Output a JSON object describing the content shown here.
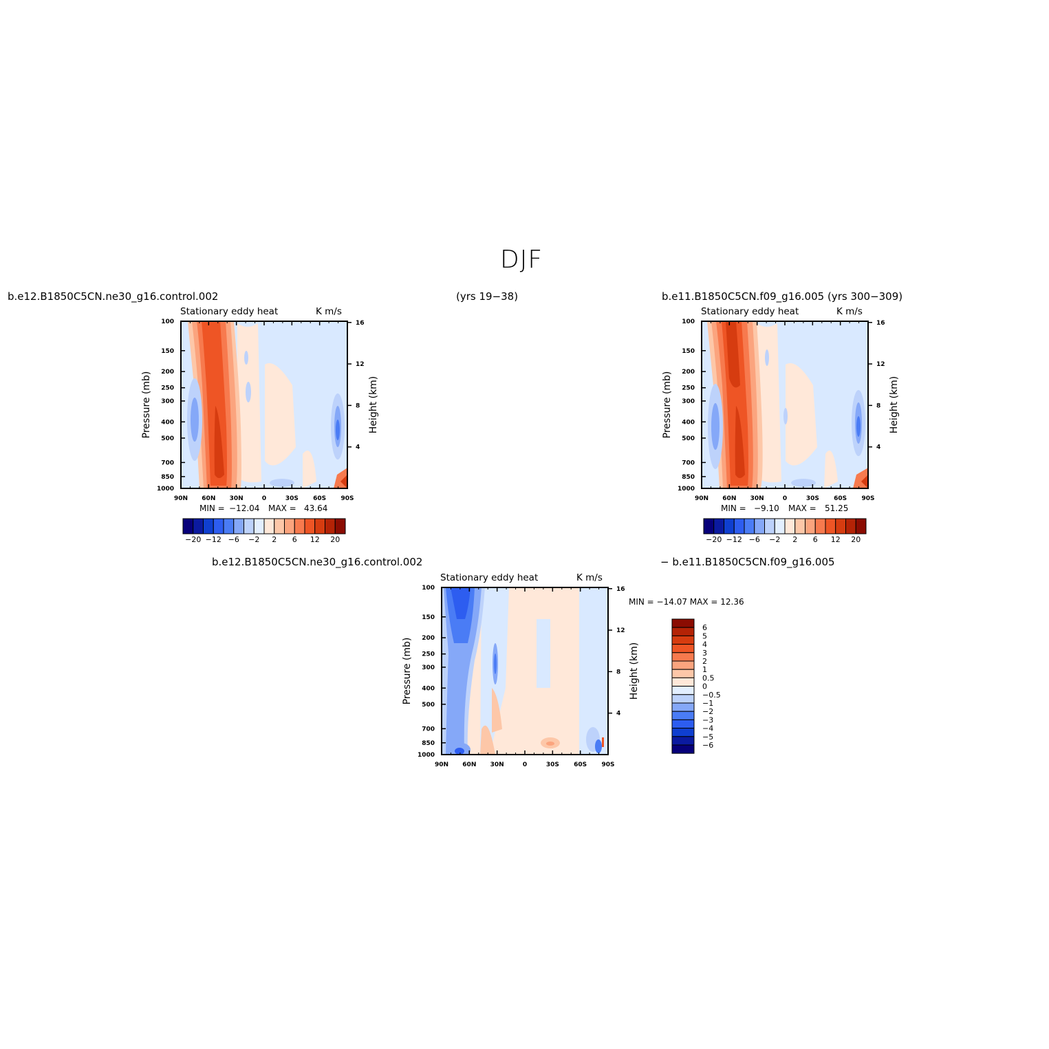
{
  "page": {
    "title": "DJF"
  },
  "top_left": {
    "case": "b.e12.B1850C5CN.ne30_g16.control.002",
    "field": "Stationary  eddy  heat",
    "units": "K  m/s",
    "years": "(yrs  19−38)",
    "min_label": "MIN  =",
    "min": "−12.04",
    "max_label": "MAX  =",
    "max": "43.64"
  },
  "top_right": {
    "case": "b.e11.B1850C5CN.f09_g16.005  (yrs  300−309)",
    "field": "Stationary  eddy  heat",
    "units": "K  m/s",
    "min_label": "MIN  =",
    "min": "−9.10",
    "max_label": "MAX  =",
    "max": "51.25"
  },
  "bottom": {
    "case_a": "b.e12.B1850C5CN.ne30_g16.control.002",
    "case_b": "−  b.e11.B1850C5CN.f09_g16.005",
    "field": "Stationary  eddy  heat",
    "units": "K  m/s",
    "stats": "MIN  =  −14.07    MAX  =   12.36"
  },
  "axes": {
    "ylabel": "Pressure  (mb)",
    "ylabel_right": "Height  (km)"
  },
  "colors": {
    "palette_12": [
      "#07007a",
      "#0b1aa0",
      "#0f3fd0",
      "#2d5df0",
      "#4a7cf5",
      "#85a8f8",
      "#bdd2fb",
      "#e3efff",
      "#ffe8d9",
      "#fdc7a8",
      "#fba47e",
      "#f77a4e",
      "#ee5525",
      "#d63c10",
      "#b42306",
      "#8b0c02"
    ],
    "palette_diff": [
      "#07007a",
      "#0b1aa0",
      "#0f3fd0",
      "#2d5df0",
      "#4a7cf5",
      "#85a8f8",
      "#bdd2fb",
      "#e3efff",
      "#ffe8d9",
      "#fdc7a8",
      "#fba47e",
      "#f77a4e",
      "#ee5525",
      "#d63c10",
      "#b42306",
      "#8b0c02"
    ]
  },
  "chart_data": [
    {
      "type": "heatmap",
      "panel": "top_left",
      "title": "Stationary  eddy  heat",
      "units": "K  m/s",
      "x_ticks": [
        "90N",
        "60N",
        "30N",
        "0",
        "30S",
        "60S",
        "90S"
      ],
      "y_ticks": [
        "100",
        "150",
        "200",
        "250",
        "300",
        "400",
        "500",
        "700",
        "850",
        "1000"
      ],
      "y_right_ticks": [
        "16",
        "12",
        "8",
        "4"
      ],
      "contour_levels": [
        "−20",
        "−12",
        "−6",
        "−2",
        "2",
        "6",
        "12",
        "20"
      ],
      "min": -12.04,
      "max": 43.64
    },
    {
      "type": "heatmap",
      "panel": "top_right",
      "title": "Stationary  eddy  heat",
      "units": "K  m/s",
      "x_ticks": [
        "90N",
        "60N",
        "30N",
        "0",
        "30S",
        "60S",
        "90S"
      ],
      "y_ticks": [
        "100",
        "150",
        "200",
        "250",
        "300",
        "400",
        "500",
        "700",
        "850",
        "1000"
      ],
      "y_right_ticks": [
        "16",
        "12",
        "8",
        "4"
      ],
      "contour_levels": [
        "−20",
        "−12",
        "−6",
        "−2",
        "2",
        "6",
        "12",
        "20"
      ],
      "min": -9.1,
      "max": 51.25
    },
    {
      "type": "heatmap",
      "panel": "bottom_difference",
      "title": "Stationary  eddy  heat",
      "units": "K  m/s",
      "x_ticks": [
        "90N",
        "60N",
        "30N",
        "0",
        "30S",
        "60S",
        "90S"
      ],
      "y_ticks": [
        "100",
        "150",
        "200",
        "250",
        "300",
        "400",
        "500",
        "700",
        "850",
        "1000"
      ],
      "y_right_ticks": [
        "16",
        "12",
        "8",
        "4"
      ],
      "contour_levels": [
        "6",
        "5",
        "4",
        "3",
        "2",
        "1",
        "0.5",
        "0",
        "−0.5",
        "−1",
        "−2",
        "−3",
        "−4",
        "−5",
        "−6"
      ],
      "min": -14.07,
      "max": 12.36
    }
  ]
}
